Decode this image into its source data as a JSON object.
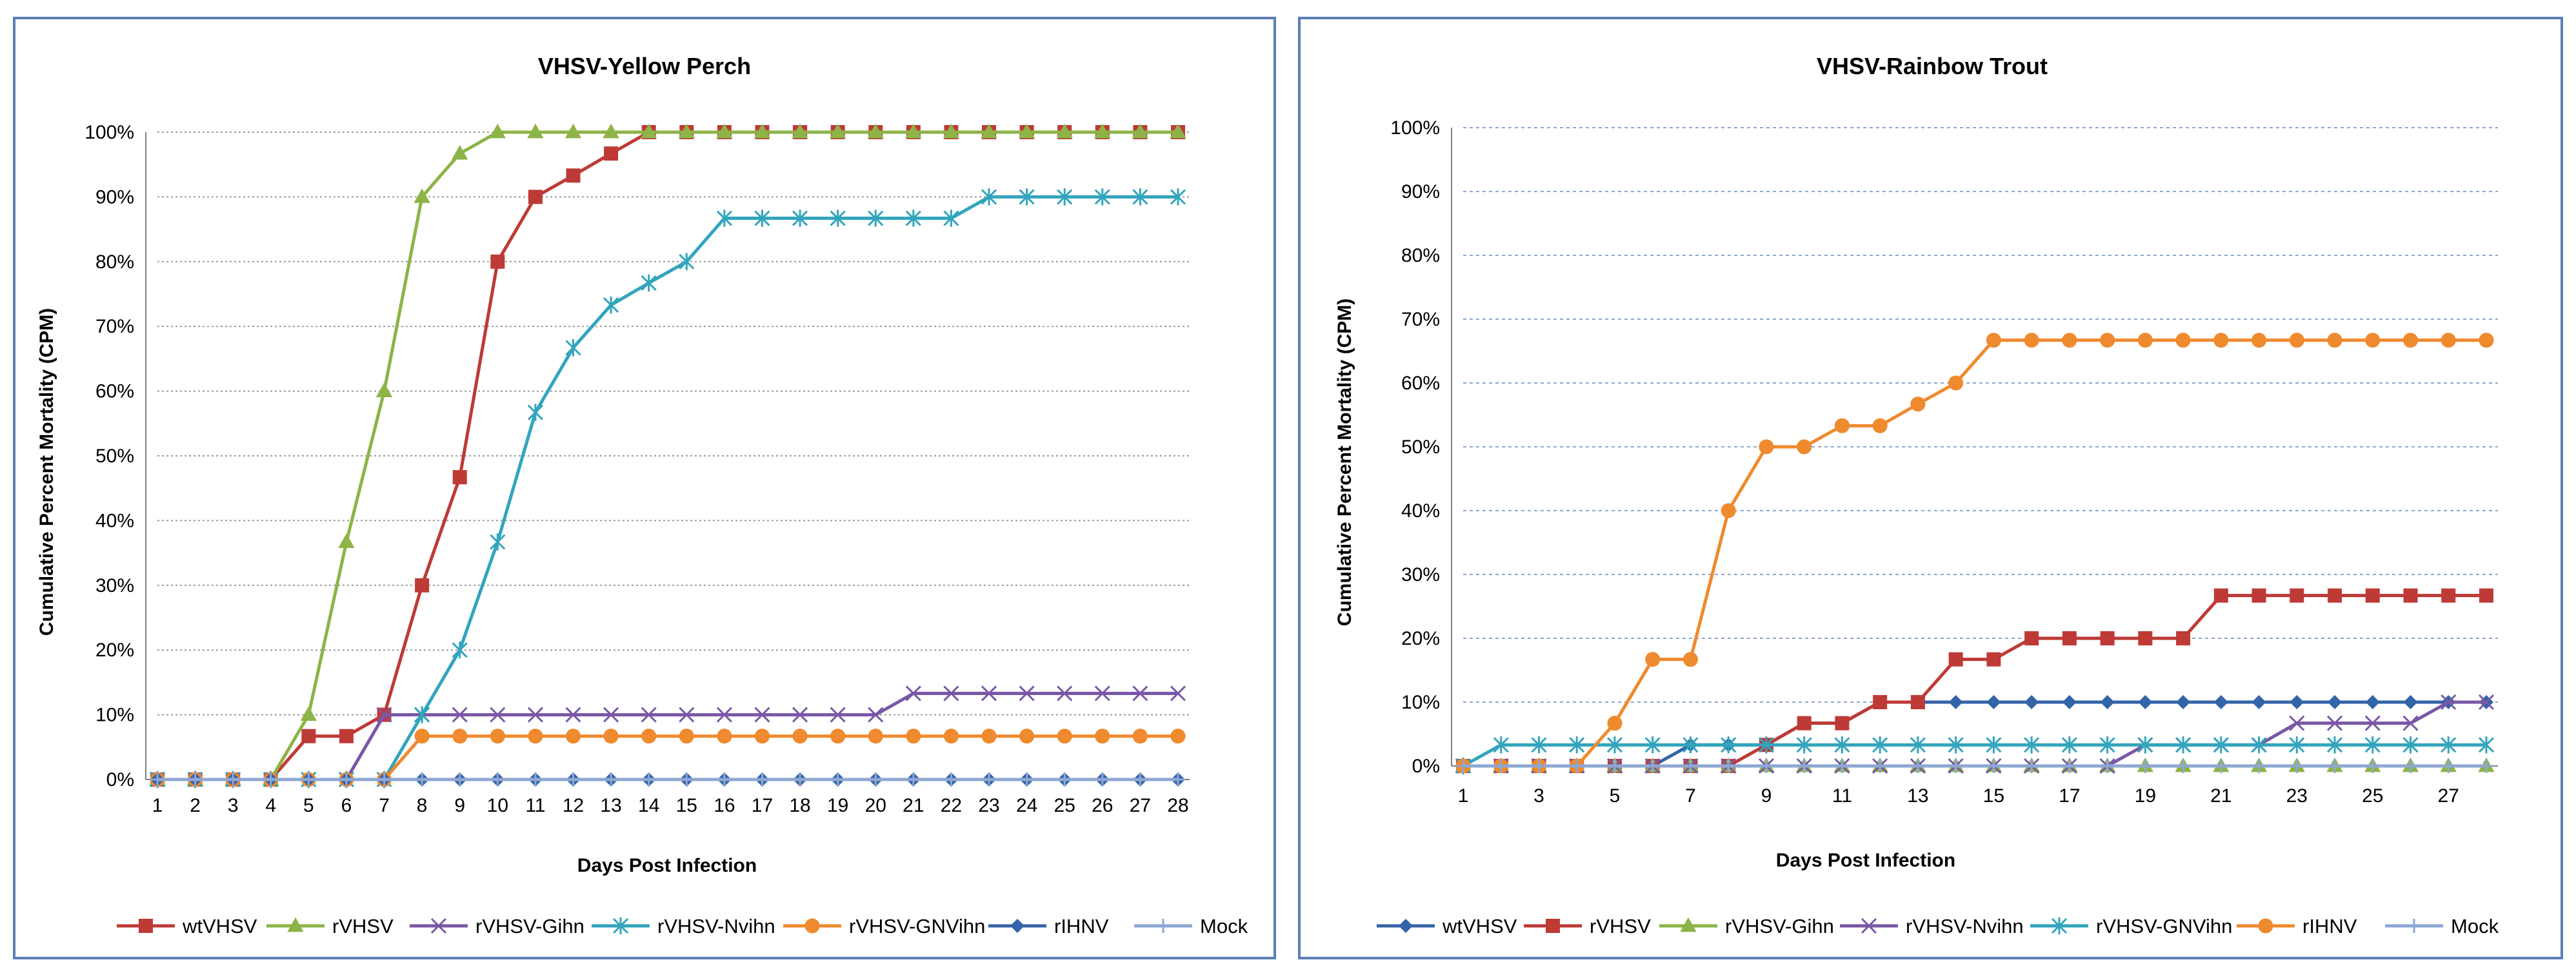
{
  "chart_data": [
    {
      "type": "line",
      "title": "VHSV-Yellow Perch",
      "xlabel": "Days Post Infection",
      "ylabel": "Cumulative Percent Mortality (CPM)",
      "ylim": [
        0,
        100
      ],
      "yticks": [
        0,
        10,
        20,
        30,
        40,
        50,
        60,
        70,
        80,
        90,
        100
      ],
      "ytick_labels": [
        "0%",
        "10%",
        "20%",
        "30%",
        "40%",
        "50%",
        "60%",
        "70%",
        "80%",
        "90%",
        "100%"
      ],
      "x": [
        1,
        2,
        3,
        4,
        5,
        6,
        7,
        8,
        9,
        10,
        11,
        12,
        13,
        14,
        15,
        16,
        17,
        18,
        19,
        20,
        21,
        22,
        23,
        24,
        25,
        26,
        27,
        28
      ],
      "xtick_labels": [
        "1",
        "2",
        "3",
        "4",
        "5",
        "6",
        "7",
        "8",
        "9",
        "10",
        "11",
        "12",
        "13",
        "14",
        "15",
        "16",
        "17",
        "18",
        "19",
        "20",
        "21",
        "22",
        "23",
        "24",
        "25",
        "26",
        "27",
        "28"
      ],
      "legend_position": "bottom",
      "series": [
        {
          "name": "wtVHSV",
          "color": "#be3a36",
          "marker": "square",
          "values": [
            0,
            0,
            0,
            0,
            6.7,
            6.7,
            10,
            30,
            46.7,
            80,
            90,
            93.3,
            96.7,
            100,
            100,
            100,
            100,
            100,
            100,
            100,
            100,
            100,
            100,
            100,
            100,
            100,
            100,
            100
          ]
        },
        {
          "name": "rVHSV",
          "color": "#8db447",
          "marker": "triangle",
          "values": [
            0,
            0,
            0,
            0,
            10,
            36.7,
            60,
            90,
            96.7,
            100,
            100,
            100,
            100,
            100,
            100,
            100,
            100,
            100,
            100,
            100,
            100,
            100,
            100,
            100,
            100,
            100,
            100,
            100
          ]
        },
        {
          "name": "rVHSV-Gihn",
          "color": "#7a57a6",
          "marker": "x",
          "values": [
            0,
            0,
            0,
            0,
            0,
            0,
            10,
            10,
            10,
            10,
            10,
            10,
            10,
            10,
            10,
            10,
            10,
            10,
            10,
            10,
            13.3,
            13.3,
            13.3,
            13.3,
            13.3,
            13.3,
            13.3,
            13.3
          ]
        },
        {
          "name": "rVHSV-Nvihn",
          "color": "#32a5bd",
          "marker": "star",
          "values": [
            0,
            0,
            0,
            0,
            0,
            0,
            0,
            10,
            20,
            36.7,
            56.7,
            66.7,
            73.3,
            76.7,
            80,
            86.7,
            86.7,
            86.7,
            86.7,
            86.7,
            86.7,
            86.7,
            90,
            90,
            90,
            90,
            90,
            90
          ]
        },
        {
          "name": "rVHSV-GNVihn",
          "color": "#ef8a2e",
          "marker": "circle",
          "values": [
            0,
            0,
            0,
            0,
            0,
            0,
            0,
            6.7,
            6.7,
            6.7,
            6.7,
            6.7,
            6.7,
            6.7,
            6.7,
            6.7,
            6.7,
            6.7,
            6.7,
            6.7,
            6.7,
            6.7,
            6.7,
            6.7,
            6.7,
            6.7,
            6.7,
            6.7
          ]
        },
        {
          "name": "rIHNV",
          "color": "#3464a8",
          "marker": "diamond",
          "values": [
            0,
            0,
            0,
            0,
            0,
            0,
            0,
            0,
            0,
            0,
            0,
            0,
            0,
            0,
            0,
            0,
            0,
            0,
            0,
            0,
            0,
            0,
            0,
            0,
            0,
            0,
            0,
            0
          ]
        },
        {
          "name": "Mock",
          "color": "#8ea7d3",
          "marker": "plus",
          "values": [
            0,
            0,
            0,
            0,
            0,
            0,
            0,
            0,
            0,
            0,
            0,
            0,
            0,
            0,
            0,
            0,
            0,
            0,
            0,
            0,
            0,
            0,
            0,
            0,
            0,
            0,
            0,
            0
          ]
        }
      ]
    },
    {
      "type": "line",
      "title": "VHSV-Rainbow Trout",
      "xlabel": "Days Post Infection",
      "ylabel": "Cumulative Percent Mortality (CPM)",
      "ylim": [
        0,
        100
      ],
      "yticks": [
        0,
        10,
        20,
        30,
        40,
        50,
        60,
        70,
        80,
        90,
        100
      ],
      "ytick_labels": [
        "0%",
        "10%",
        "20%",
        "30%",
        "40%",
        "50%",
        "60%",
        "70%",
        "80%",
        "90%",
        "100%"
      ],
      "x": [
        1,
        2,
        3,
        4,
        5,
        6,
        7,
        8,
        9,
        10,
        11,
        12,
        13,
        14,
        15,
        16,
        17,
        18,
        19,
        20,
        21,
        22,
        23,
        24,
        25,
        26,
        27,
        28
      ],
      "xtick_labels": [
        "1",
        "",
        "3",
        "",
        "5",
        "",
        "7",
        "",
        "9",
        "",
        "11",
        "",
        "13",
        "",
        "15",
        "",
        "17",
        "",
        "19",
        "",
        "21",
        "",
        "23",
        "",
        "25",
        "",
        "27",
        ""
      ],
      "legend_position": "bottom",
      "series": [
        {
          "name": "wtVHSV",
          "color": "#3464a8",
          "marker": "diamond",
          "values": [
            0,
            0,
            0,
            0,
            0,
            0,
            3.3,
            3.3,
            3.3,
            6.7,
            6.7,
            10,
            10,
            10,
            10,
            10,
            10,
            10,
            10,
            10,
            10,
            10,
            10,
            10,
            10,
            10,
            10,
            10
          ]
        },
        {
          "name": "rVHSV",
          "color": "#be3a36",
          "marker": "square",
          "values": [
            0,
            0,
            0,
            0,
            0,
            0,
            0,
            0,
            3.3,
            6.7,
            6.7,
            10,
            10,
            16.7,
            16.7,
            20,
            20,
            20,
            20,
            20,
            26.7,
            26.7,
            26.7,
            26.7,
            26.7,
            26.7,
            26.7,
            26.7
          ]
        },
        {
          "name": "rVHSV-Gihn",
          "color": "#8db447",
          "marker": "triangle",
          "values": [
            0,
            0,
            0,
            0,
            0,
            0,
            0,
            0,
            0,
            0,
            0,
            0,
            0,
            0,
            0,
            0,
            0,
            0,
            0,
            0,
            0,
            0,
            0,
            0,
            0,
            0,
            0,
            0
          ]
        },
        {
          "name": "rVHSV-Nvihn",
          "color": "#7a57a6",
          "marker": "x",
          "values": [
            0,
            0,
            0,
            0,
            0,
            0,
            0,
            0,
            0,
            0,
            0,
            0,
            0,
            0,
            0,
            0,
            0,
            0,
            3.3,
            3.3,
            3.3,
            3.3,
            6.7,
            6.7,
            6.7,
            6.7,
            10,
            10
          ]
        },
        {
          "name": "rVHSV-GNVihn",
          "color": "#32a5bd",
          "marker": "star",
          "values": [
            0,
            3.3,
            3.3,
            3.3,
            3.3,
            3.3,
            3.3,
            3.3,
            3.3,
            3.3,
            3.3,
            3.3,
            3.3,
            3.3,
            3.3,
            3.3,
            3.3,
            3.3,
            3.3,
            3.3,
            3.3,
            3.3,
            3.3,
            3.3,
            3.3,
            3.3,
            3.3,
            3.3
          ]
        },
        {
          "name": "rIHNV",
          "color": "#ef8a2e",
          "marker": "circle",
          "values": [
            0,
            0,
            0,
            0,
            6.7,
            16.7,
            16.7,
            40,
            50,
            50,
            53.3,
            53.3,
            56.7,
            60,
            66.7,
            66.7,
            66.7,
            66.7,
            66.7,
            66.7,
            66.7,
            66.7,
            66.7,
            66.7,
            66.7,
            66.7,
            66.7,
            66.7
          ]
        },
        {
          "name": "Mock",
          "color": "#8ea7d3",
          "marker": "plus",
          "values": [
            0,
            0,
            0,
            0,
            0,
            0,
            0,
            0,
            0,
            0,
            0,
            0,
            0,
            0,
            0,
            0,
            0,
            0,
            0,
            0,
            0,
            0,
            0,
            0,
            0,
            0,
            0,
            0
          ]
        }
      ]
    }
  ]
}
